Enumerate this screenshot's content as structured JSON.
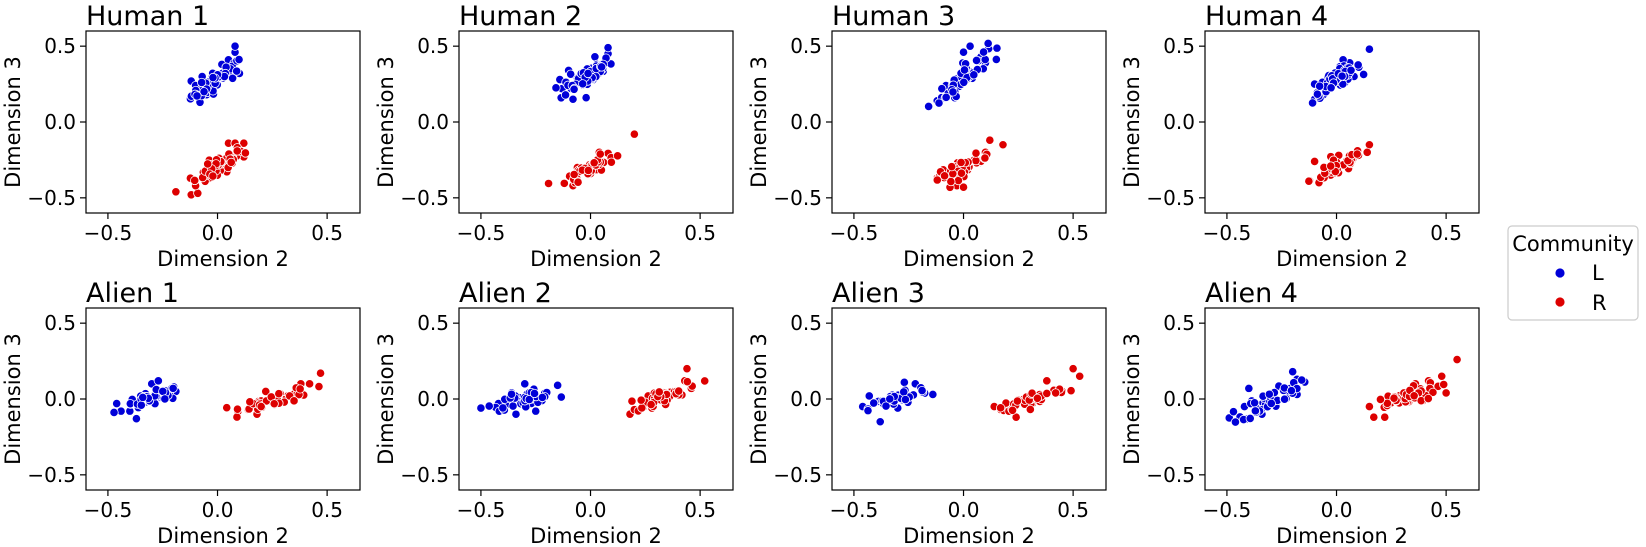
{
  "legend": {
    "title": "Community",
    "entries": [
      {
        "label": "L",
        "color": "#0000d8"
      },
      {
        "label": "R",
        "color": "#dd0000"
      }
    ]
  },
  "axes_common": {
    "xlabel": "Dimension 2",
    "ylabel": "Dimension 3",
    "xlim": [
      -0.6,
      0.65
    ],
    "ylim": [
      -0.6,
      0.6
    ],
    "xticks": [
      -0.5,
      0.0,
      0.5
    ],
    "xtick_labels": [
      "−0.5",
      "0.0",
      "0.5"
    ],
    "yticks": [
      0.5,
      0.0,
      -0.5
    ],
    "ytick_labels": [
      "0.5",
      "0.0",
      "−0.5"
    ],
    "grid": false,
    "legend_placement": "right"
  },
  "chart_data": [
    {
      "type": "scatter",
      "title": "Human 1",
      "xlabel": "Dimension 2",
      "ylabel": "Dimension 3",
      "xlim": [
        -0.6,
        0.65
      ],
      "ylim": [
        -0.6,
        0.6
      ],
      "series": [
        {
          "name": "L",
          "color": "#0000d8",
          "cluster": {
            "center": [
              0.0,
              0.28
            ],
            "spread_x": 0.06,
            "spread_y": 0.055,
            "slope": 0.9,
            "count": 60
          },
          "points": [
            [
              -0.12,
              0.27
            ],
            [
              -0.08,
              0.13
            ],
            [
              -0.1,
              0.24
            ],
            [
              -0.05,
              0.18
            ],
            [
              0.02,
              0.38
            ],
            [
              0.05,
              0.41
            ],
            [
              0.08,
              0.46
            ],
            [
              0.08,
              0.5
            ],
            [
              0.1,
              0.32
            ],
            [
              0.07,
              0.35
            ],
            [
              -0.07,
              0.3
            ],
            [
              0.04,
              0.32
            ]
          ]
        },
        {
          "name": "R",
          "color": "#dd0000",
          "cluster": {
            "center": [
              0.0,
              -0.3
            ],
            "spread_x": 0.06,
            "spread_y": 0.06,
            "slope": 0.9,
            "count": 60
          },
          "points": [
            [
              -0.19,
              -0.46
            ],
            [
              -0.12,
              -0.48
            ],
            [
              -0.09,
              -0.47
            ],
            [
              -0.1,
              -0.42
            ],
            [
              0.05,
              -0.14
            ],
            [
              0.08,
              -0.14
            ],
            [
              0.12,
              -0.14
            ],
            [
              0.12,
              -0.23
            ],
            [
              -0.06,
              -0.36
            ],
            [
              0.02,
              -0.3
            ]
          ]
        }
      ]
    },
    {
      "type": "scatter",
      "title": "Human 2",
      "xlabel": "Dimension 2",
      "ylabel": "Dimension 3",
      "xlim": [
        -0.6,
        0.65
      ],
      "ylim": [
        -0.6,
        0.6
      ],
      "series": [
        {
          "name": "L",
          "color": "#0000d8",
          "cluster": {
            "center": [
              -0.02,
              0.3
            ],
            "spread_x": 0.06,
            "spread_y": 0.06,
            "slope": 0.8,
            "count": 60
          },
          "points": [
            [
              -0.14,
              0.28
            ],
            [
              -0.13,
              0.22
            ],
            [
              -0.08,
              0.15
            ],
            [
              -0.02,
              0.16
            ],
            [
              0.02,
              0.43
            ],
            [
              0.08,
              0.45
            ],
            [
              0.08,
              0.49
            ],
            [
              0.03,
              0.38
            ],
            [
              -0.1,
              0.34
            ]
          ]
        },
        {
          "name": "R",
          "color": "#dd0000",
          "cluster": {
            "center": [
              0.0,
              -0.3
            ],
            "spread_x": 0.055,
            "spread_y": 0.045,
            "slope": 0.7,
            "count": 55
          },
          "points": [
            [
              -0.08,
              -0.42
            ],
            [
              -0.07,
              -0.4
            ],
            [
              0.04,
              -0.2
            ],
            [
              0.09,
              -0.23
            ],
            [
              0.2,
              -0.08
            ],
            [
              -0.06,
              -0.3
            ],
            [
              0.0,
              -0.34
            ],
            [
              0.05,
              -0.27
            ]
          ]
        }
      ]
    },
    {
      "type": "scatter",
      "title": "Human 3",
      "xlabel": "Dimension 2",
      "ylabel": "Dimension 3",
      "xlim": [
        -0.6,
        0.65
      ],
      "ylim": [
        -0.6,
        0.6
      ],
      "series": [
        {
          "name": "L",
          "color": "#0000d8",
          "cluster": {
            "center": [
              0.0,
              0.3
            ],
            "spread_x": 0.055,
            "spread_y": 0.075,
            "slope": 1.3,
            "count": 60
          },
          "points": [
            [
              -0.12,
              0.14
            ],
            [
              -0.1,
              0.16
            ],
            [
              -0.04,
              0.16
            ],
            [
              0.03,
              0.5
            ],
            [
              0.08,
              0.43
            ],
            [
              0.1,
              0.39
            ],
            [
              0.0,
              0.46
            ],
            [
              -0.08,
              0.24
            ]
          ]
        },
        {
          "name": "R",
          "color": "#dd0000",
          "cluster": {
            "center": [
              0.0,
              -0.3
            ],
            "spread_x": 0.06,
            "spread_y": 0.05,
            "slope": 0.6,
            "count": 55
          },
          "points": [
            [
              -0.12,
              -0.37
            ],
            [
              -0.11,
              -0.36
            ],
            [
              -0.03,
              -0.42
            ],
            [
              0.0,
              -0.43
            ],
            [
              0.12,
              -0.12
            ],
            [
              0.18,
              -0.15
            ],
            [
              0.1,
              -0.2
            ],
            [
              0.07,
              -0.27
            ]
          ]
        }
      ]
    },
    {
      "type": "scatter",
      "title": "Human 4",
      "xlabel": "Dimension 2",
      "ylabel": "Dimension 3",
      "xlim": [
        -0.6,
        0.65
      ],
      "ylim": [
        -0.6,
        0.6
      ],
      "series": [
        {
          "name": "L",
          "color": "#0000d8",
          "cluster": {
            "center": [
              0.0,
              0.28
            ],
            "spread_x": 0.055,
            "spread_y": 0.055,
            "slope": 0.9,
            "count": 60
          },
          "points": [
            [
              -0.1,
              0.25
            ],
            [
              -0.1,
              0.15
            ],
            [
              -0.06,
              0.18
            ],
            [
              0.15,
              0.48
            ],
            [
              0.06,
              0.39
            ],
            [
              0.03,
              0.41
            ],
            [
              0.08,
              0.3
            ],
            [
              -0.04,
              0.3
            ]
          ]
        },
        {
          "name": "R",
          "color": "#dd0000",
          "cluster": {
            "center": [
              0.0,
              -0.3
            ],
            "spread_x": 0.06,
            "spread_y": 0.05,
            "slope": 0.7,
            "count": 55
          },
          "points": [
            [
              -0.1,
              -0.26
            ],
            [
              -0.08,
              -0.4
            ],
            [
              -0.04,
              -0.35
            ],
            [
              0.15,
              -0.15
            ],
            [
              0.14,
              -0.2
            ],
            [
              0.1,
              -0.22
            ],
            [
              0.01,
              -0.22
            ]
          ]
        }
      ]
    },
    {
      "type": "scatter",
      "title": "Alien 1",
      "xlabel": "Dimension 2",
      "ylabel": "Dimension 3",
      "xlim": [
        -0.6,
        0.65
      ],
      "ylim": [
        -0.6,
        0.6
      ],
      "series": [
        {
          "name": "L",
          "color": "#0000d8",
          "cluster": {
            "center": [
              -0.3,
              0.0
            ],
            "spread_x": 0.065,
            "spread_y": 0.04,
            "slope": 0.4,
            "count": 55
          },
          "points": [
            [
              -0.46,
              -0.03
            ],
            [
              -0.44,
              -0.08
            ],
            [
              -0.4,
              -0.08
            ],
            [
              -0.37,
              -0.13
            ],
            [
              -0.3,
              0.1
            ],
            [
              -0.27,
              0.12
            ],
            [
              -0.2,
              0.08
            ],
            [
              -0.19,
              0.05
            ],
            [
              -0.33,
              -0.02
            ]
          ]
        },
        {
          "name": "R",
          "color": "#dd0000",
          "cluster": {
            "center": [
              0.27,
              0.0
            ],
            "spread_x": 0.08,
            "spread_y": 0.04,
            "slope": 0.35,
            "count": 55
          },
          "points": [
            [
              0.14,
              -0.07
            ],
            [
              0.15,
              -0.04
            ],
            [
              0.18,
              -0.1
            ],
            [
              0.22,
              0.05
            ],
            [
              0.38,
              0.1
            ],
            [
              0.42,
              0.1
            ],
            [
              0.47,
              0.17
            ],
            [
              0.32,
              0.02
            ]
          ]
        }
      ]
    },
    {
      "type": "scatter",
      "title": "Alien 2",
      "xlabel": "Dimension 2",
      "ylabel": "Dimension 3",
      "xlim": [
        -0.6,
        0.65
      ],
      "ylim": [
        -0.6,
        0.6
      ],
      "series": [
        {
          "name": "L",
          "color": "#0000d8",
          "cluster": {
            "center": [
              -0.3,
              0.0
            ],
            "spread_x": 0.07,
            "spread_y": 0.04,
            "slope": 0.3,
            "count": 55
          },
          "points": [
            [
              -0.5,
              -0.06
            ],
            [
              -0.42,
              -0.03
            ],
            [
              -0.3,
              0.1
            ],
            [
              -0.15,
              0.09
            ],
            [
              -0.25,
              -0.08
            ],
            [
              -0.36,
              0.04
            ]
          ]
        },
        {
          "name": "R",
          "color": "#dd0000",
          "cluster": {
            "center": [
              0.3,
              0.0
            ],
            "spread_x": 0.07,
            "spread_y": 0.045,
            "slope": 0.45,
            "count": 55
          },
          "points": [
            [
              0.18,
              -0.1
            ],
            [
              0.2,
              -0.07
            ],
            [
              0.44,
              0.2
            ],
            [
              0.43,
              0.12
            ],
            [
              0.46,
              0.07
            ],
            [
              0.38,
              0.05
            ],
            [
              0.28,
              -0.06
            ]
          ]
        }
      ]
    },
    {
      "type": "scatter",
      "title": "Alien 3",
      "xlabel": "Dimension 2",
      "ylabel": "Dimension 3",
      "xlim": [
        -0.6,
        0.65
      ],
      "ylim": [
        -0.6,
        0.6
      ],
      "series": [
        {
          "name": "L",
          "color": "#0000d8",
          "cluster": {
            "center": [
              -0.3,
              0.0
            ],
            "spread_x": 0.065,
            "spread_y": 0.045,
            "slope": 0.5,
            "count": 55
          },
          "points": [
            [
              -0.46,
              -0.05
            ],
            [
              -0.43,
              0.02
            ],
            [
              -0.38,
              -0.15
            ],
            [
              -0.27,
              0.11
            ],
            [
              -0.22,
              0.1
            ],
            [
              -0.14,
              0.03
            ],
            [
              -0.3,
              -0.06
            ]
          ]
        },
        {
          "name": "R",
          "color": "#dd0000",
          "cluster": {
            "center": [
              0.32,
              0.0
            ],
            "spread_x": 0.08,
            "spread_y": 0.04,
            "slope": 0.4,
            "count": 55
          },
          "points": [
            [
              0.14,
              -0.05
            ],
            [
              0.17,
              -0.07
            ],
            [
              0.24,
              -0.12
            ],
            [
              0.5,
              0.2
            ],
            [
              0.53,
              0.15
            ],
            [
              0.45,
              0.05
            ],
            [
              0.38,
              0.12
            ]
          ]
        }
      ]
    },
    {
      "type": "scatter",
      "title": "Alien 4",
      "xlabel": "Dimension 2",
      "ylabel": "Dimension 3",
      "xlim": [
        -0.6,
        0.65
      ],
      "ylim": [
        -0.6,
        0.6
      ],
      "series": [
        {
          "name": "L",
          "color": "#0000d8",
          "cluster": {
            "center": [
              -0.3,
              0.0
            ],
            "spread_x": 0.065,
            "spread_y": 0.06,
            "slope": 0.7,
            "count": 60
          },
          "points": [
            [
              -0.44,
              -0.13
            ],
            [
              -0.42,
              -0.05
            ],
            [
              -0.4,
              0.07
            ],
            [
              -0.2,
              0.18
            ],
            [
              -0.18,
              0.13
            ],
            [
              -0.18,
              0.03
            ],
            [
              -0.34,
              -0.1
            ]
          ]
        },
        {
          "name": "R",
          "color": "#dd0000",
          "cluster": {
            "center": [
              0.3,
              0.0
            ],
            "spread_x": 0.08,
            "spread_y": 0.05,
            "slope": 0.45,
            "count": 60
          },
          "points": [
            [
              0.15,
              -0.05
            ],
            [
              0.17,
              -0.12
            ],
            [
              0.22,
              -0.12
            ],
            [
              0.48,
              0.15
            ],
            [
              0.5,
              0.04
            ],
            [
              0.55,
              0.26
            ],
            [
              0.42,
              0.12
            ],
            [
              0.36,
              0.1
            ]
          ]
        }
      ]
    }
  ]
}
